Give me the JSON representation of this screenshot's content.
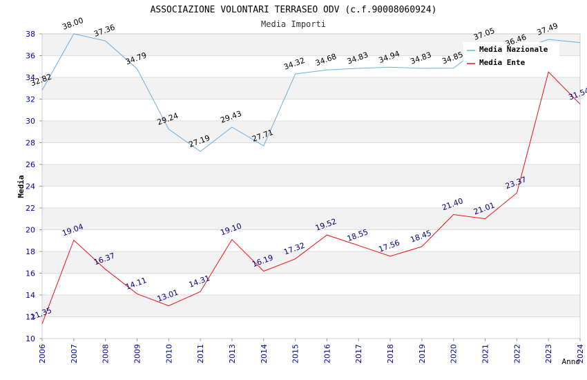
{
  "chart_data": {
    "type": "line",
    "title": "ASSOCIAZIONE VOLONTARI TERRASEO ODV (c.f.90008060924)",
    "subtitle": "Media Importi",
    "xlabel": "Anno",
    "ylabel": "Media",
    "ylim": [
      10,
      38
    ],
    "yticks": [
      10,
      12,
      14,
      16,
      18,
      20,
      22,
      24,
      26,
      28,
      30,
      32,
      34,
      36,
      38
    ],
    "categories": [
      "2006",
      "2007",
      "2008",
      "2009",
      "2010",
      "2011",
      "2013",
      "2014",
      "2015",
      "2016",
      "2017",
      "2018",
      "2019",
      "2020",
      "2021",
      "2022",
      "2023",
      "2024"
    ],
    "grid": true,
    "legend_position": "top-right",
    "series": [
      {
        "name": "Media Nazionale",
        "color": "#6aaee6",
        "label_color": "#000000",
        "values": [
          32.82,
          38.0,
          37.36,
          34.79,
          29.24,
          27.19,
          29.43,
          27.71,
          34.32,
          34.68,
          34.83,
          34.94,
          34.83,
          34.85,
          37.05,
          36.46,
          37.49,
          37.2
        ],
        "labels": [
          "32.82",
          "38.00",
          "37.36",
          "34.79",
          "29.24",
          "27.19",
          "29.43",
          "27.71",
          "34.32",
          "34.68",
          "34.83",
          "34.94",
          "34.83",
          "34.85",
          "37.05",
          "36.46",
          "37.49",
          ""
        ]
      },
      {
        "name": "Media Ente",
        "color": "#ee1111",
        "label_color": "#000080",
        "values": [
          11.35,
          19.04,
          16.37,
          14.11,
          13.01,
          14.31,
          19.1,
          16.19,
          17.32,
          19.52,
          18.55,
          17.56,
          18.45,
          21.4,
          21.01,
          23.37,
          34.5,
          31.54
        ],
        "labels": [
          "11.35",
          "19.04",
          "16.37",
          "14.11",
          "13.01",
          "14.31",
          "19.10",
          "16.19",
          "17.32",
          "19.52",
          "18.55",
          "17.56",
          "18.45",
          "21.40",
          "21.01",
          "23.37",
          "",
          "31.54"
        ]
      }
    ]
  }
}
